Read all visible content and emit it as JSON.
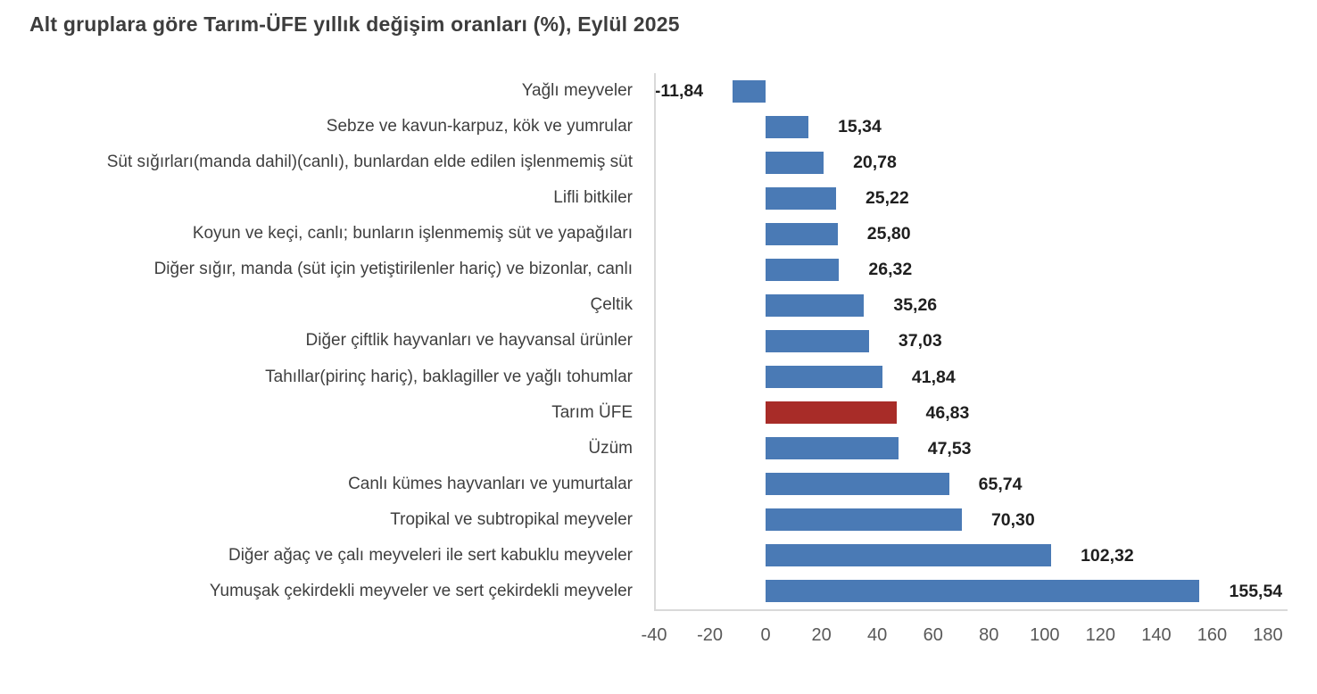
{
  "title": "Alt gruplara göre Tarım-ÜFE yıllık değişim oranları (%), Eylül 2025",
  "chart_data": {
    "type": "bar",
    "orientation": "horizontal",
    "title": "Alt gruplara göre Tarım-ÜFE yıllık değişim oranları (%), Eylül 2025",
    "categories": [
      "Yağlı meyveler",
      "Sebze ve kavun-karpuz, kök ve yumrular",
      "Süt sığırları(manda dahil)(canlı), bunlardan elde edilen işlenmemiş süt",
      "Lifli bitkiler",
      "Koyun ve keçi, canlı; bunların işlenmemiş süt ve yapağıları",
      "Diğer sığır, manda (süt için yetiştirilenler hariç) ve bizonlar, canlı",
      "Çeltik",
      "Diğer çiftlik hayvanları ve hayvansal ürünler",
      "Tahıllar(pirinç hariç), baklagiller ve yağlı tohumlar",
      "Tarım ÜFE",
      "Üzüm",
      "Canlı kümes hayvanları ve yumurtalar",
      "Tropikal ve subtropikal meyveler",
      "Diğer ağaç ve çalı meyveleri ile sert kabuklu meyveler",
      "Yumuşak çekirdekli meyveler ve sert çekirdekli meyveler"
    ],
    "values": [
      -11.84,
      15.34,
      20.78,
      25.22,
      25.8,
      26.32,
      35.26,
      37.03,
      41.84,
      46.83,
      47.53,
      65.74,
      70.3,
      102.32,
      155.54
    ],
    "value_labels": [
      "-11,84",
      "15,34",
      "20,78",
      "25,22",
      "25,80",
      "26,32",
      "35,26",
      "37,03",
      "41,84",
      "46,83",
      "47,53",
      "65,74",
      "70,30",
      "102,32",
      "155,54"
    ],
    "highlight_category": "Tarım ÜFE",
    "highlight_index": 9,
    "colors": {
      "bar": "#4A7AB5",
      "highlight_bar": "#A82C28"
    },
    "xlim": [
      -40,
      180
    ],
    "x_ticks": [
      -40,
      -20,
      0,
      20,
      40,
      60,
      80,
      100,
      120,
      140,
      160,
      180
    ],
    "x_tick_labels": [
      "-40",
      "-20",
      "0",
      "20",
      "40",
      "60",
      "80",
      "100",
      "120",
      "140",
      "160",
      "180"
    ],
    "grid": false,
    "legend": "none",
    "data_labels": true
  }
}
